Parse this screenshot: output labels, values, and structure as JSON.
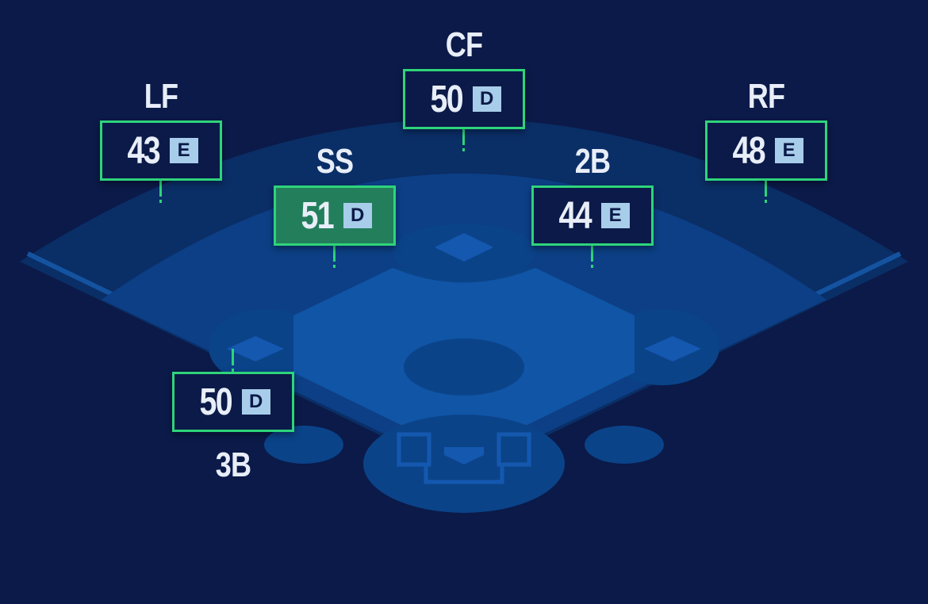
{
  "positions": [
    {
      "id": "lf",
      "label": "LF",
      "rating": "43",
      "grade": "E",
      "selected": false
    },
    {
      "id": "cf",
      "label": "CF",
      "rating": "50",
      "grade": "D",
      "selected": false
    },
    {
      "id": "rf",
      "label": "RF",
      "rating": "48",
      "grade": "E",
      "selected": false
    },
    {
      "id": "ss",
      "label": "SS",
      "rating": "51",
      "grade": "D",
      "selected": true
    },
    {
      "id": "2b",
      "label": "2B",
      "rating": "44",
      "grade": "E",
      "selected": false
    },
    {
      "id": "3b",
      "label": "3B",
      "rating": "50",
      "grade": "D",
      "selected": false
    }
  ],
  "colors": {
    "background": "#0b1a48",
    "accent": "#2ed47a",
    "selected_fill": "#237e5c",
    "grade_badge": "#a8cdea",
    "infield": "#1055a6"
  }
}
